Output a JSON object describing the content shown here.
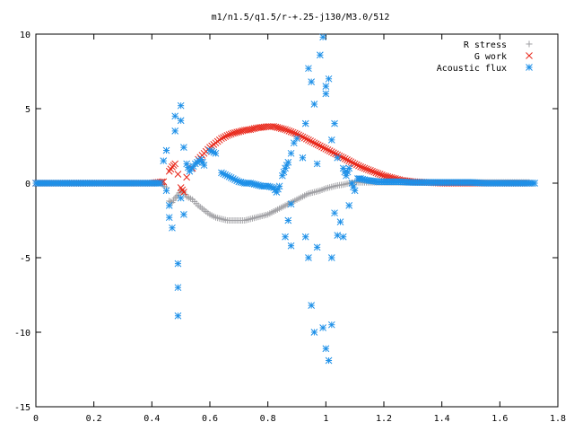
{
  "chart_data": {
    "type": "scatter",
    "title": "m1/n1.5/q1.5/r-+.25-j130/M3.0/512",
    "xlabel": "",
    "ylabel": "",
    "xlim": [
      0,
      1.8
    ],
    "ylim": [
      -15,
      10
    ],
    "xticks": [
      0,
      0.2,
      0.4,
      0.6,
      0.8,
      1,
      1.2,
      1.4,
      1.6,
      1.8
    ],
    "xtick_labels": [
      "0",
      "0.2",
      "0.4",
      "0.6",
      "0.8",
      "1",
      "1.2",
      "1.4",
      "1.6",
      "1.8"
    ],
    "yticks": [
      -15,
      -10,
      -5,
      0,
      5,
      10
    ],
    "ytick_labels": [
      "-15",
      "-10",
      "-5",
      "0",
      "5",
      "10"
    ],
    "grid": false,
    "legend_position": "top-right",
    "series": [
      {
        "name": "R stress",
        "marker": "plus",
        "color": "#a0a0a4",
        "points": [
          [
            0.0,
            0.0
          ],
          [
            0.05,
            0.0
          ],
          [
            0.1,
            0.0
          ],
          [
            0.15,
            0.0
          ],
          [
            0.2,
            0.0
          ],
          [
            0.25,
            0.0
          ],
          [
            0.3,
            0.0
          ],
          [
            0.35,
            0.0
          ],
          [
            0.4,
            0.0
          ],
          [
            0.43,
            0.0
          ],
          [
            0.45,
            -0.3
          ],
          [
            0.46,
            -1.2
          ],
          [
            0.47,
            -1.3
          ],
          [
            0.48,
            -1.0
          ],
          [
            0.49,
            -0.8
          ],
          [
            0.5,
            -0.5
          ],
          [
            0.51,
            -0.6
          ],
          [
            0.52,
            -0.9
          ],
          [
            0.54,
            -1.1
          ],
          [
            0.56,
            -1.5
          ],
          [
            0.58,
            -1.8
          ],
          [
            0.6,
            -2.1
          ],
          [
            0.62,
            -2.3
          ],
          [
            0.64,
            -2.4
          ],
          [
            0.66,
            -2.5
          ],
          [
            0.68,
            -2.5
          ],
          [
            0.7,
            -2.5
          ],
          [
            0.72,
            -2.5
          ],
          [
            0.74,
            -2.4
          ],
          [
            0.76,
            -2.3
          ],
          [
            0.78,
            -2.2
          ],
          [
            0.8,
            -2.1
          ],
          [
            0.82,
            -1.9
          ],
          [
            0.84,
            -1.7
          ],
          [
            0.86,
            -1.5
          ],
          [
            0.88,
            -1.3
          ],
          [
            0.9,
            -1.1
          ],
          [
            0.92,
            -0.9
          ],
          [
            0.94,
            -0.7
          ],
          [
            0.96,
            -0.6
          ],
          [
            0.98,
            -0.5
          ],
          [
            1.0,
            -0.35
          ],
          [
            1.02,
            -0.25
          ],
          [
            1.04,
            -0.15
          ],
          [
            1.06,
            -0.1
          ],
          [
            1.08,
            0.0
          ],
          [
            1.1,
            0.05
          ],
          [
            1.12,
            0.05
          ],
          [
            1.14,
            0.05
          ],
          [
            1.16,
            0.05
          ],
          [
            1.18,
            0.05
          ],
          [
            1.2,
            0.05
          ],
          [
            1.25,
            0.05
          ],
          [
            1.3,
            0.05
          ],
          [
            1.35,
            0.05
          ],
          [
            1.4,
            0.05
          ],
          [
            1.45,
            0.05
          ],
          [
            1.5,
            0.05
          ],
          [
            1.55,
            0.05
          ],
          [
            1.6,
            0.05
          ],
          [
            1.65,
            0.05
          ],
          [
            1.7,
            0.05
          ]
        ]
      },
      {
        "name": "G work",
        "marker": "cross",
        "color": "#e8271a",
        "points": [
          [
            0.0,
            0.0
          ],
          [
            0.05,
            0.0
          ],
          [
            0.1,
            0.0
          ],
          [
            0.15,
            0.0
          ],
          [
            0.2,
            0.0
          ],
          [
            0.25,
            0.0
          ],
          [
            0.3,
            0.0
          ],
          [
            0.35,
            0.0
          ],
          [
            0.4,
            0.0
          ],
          [
            0.44,
            0.1
          ],
          [
            0.46,
            0.8
          ],
          [
            0.47,
            1.1
          ],
          [
            0.48,
            1.3
          ],
          [
            0.49,
            0.6
          ],
          [
            0.5,
            -0.3
          ],
          [
            0.51,
            -0.6
          ],
          [
            0.52,
            0.4
          ],
          [
            0.54,
            1.0
          ],
          [
            0.56,
            1.6
          ],
          [
            0.58,
            2.0
          ],
          [
            0.6,
            2.4
          ],
          [
            0.62,
            2.7
          ],
          [
            0.64,
            3.0
          ],
          [
            0.66,
            3.2
          ],
          [
            0.68,
            3.35
          ],
          [
            0.7,
            3.45
          ],
          [
            0.72,
            3.55
          ],
          [
            0.74,
            3.6
          ],
          [
            0.76,
            3.7
          ],
          [
            0.78,
            3.75
          ],
          [
            0.8,
            3.8
          ],
          [
            0.82,
            3.8
          ],
          [
            0.84,
            3.7
          ],
          [
            0.86,
            3.6
          ],
          [
            0.88,
            3.45
          ],
          [
            0.9,
            3.3
          ],
          [
            0.92,
            3.1
          ],
          [
            0.94,
            2.9
          ],
          [
            0.96,
            2.7
          ],
          [
            0.98,
            2.5
          ],
          [
            1.0,
            2.3
          ],
          [
            1.02,
            2.1
          ],
          [
            1.04,
            1.9
          ],
          [
            1.06,
            1.7
          ],
          [
            1.08,
            1.5
          ],
          [
            1.1,
            1.3
          ],
          [
            1.12,
            1.1
          ],
          [
            1.14,
            0.95
          ],
          [
            1.16,
            0.8
          ],
          [
            1.18,
            0.65
          ],
          [
            1.2,
            0.5
          ],
          [
            1.22,
            0.4
          ],
          [
            1.24,
            0.3
          ],
          [
            1.26,
            0.2
          ],
          [
            1.28,
            0.15
          ],
          [
            1.3,
            0.1
          ],
          [
            1.35,
            0.05
          ],
          [
            1.4,
            0.0
          ],
          [
            1.45,
            0.0
          ],
          [
            1.5,
            0.0
          ],
          [
            1.55,
            0.0
          ],
          [
            1.6,
            0.0
          ],
          [
            1.65,
            0.0
          ],
          [
            1.7,
            0.0
          ]
        ]
      },
      {
        "name": "Acoustic flux",
        "marker": "star",
        "color": "#1e90e8",
        "points": [
          [
            0.0,
            0.0
          ],
          [
            0.05,
            0.0
          ],
          [
            0.1,
            0.0
          ],
          [
            0.15,
            0.0
          ],
          [
            0.2,
            0.0
          ],
          [
            0.25,
            0.0
          ],
          [
            0.3,
            0.0
          ],
          [
            0.35,
            0.0
          ],
          [
            0.4,
            0.0
          ],
          [
            0.43,
            0.0
          ],
          [
            0.44,
            1.5
          ],
          [
            0.45,
            2.2
          ],
          [
            0.45,
            -0.5
          ],
          [
            0.46,
            -1.5
          ],
          [
            0.46,
            -2.3
          ],
          [
            0.47,
            -3.0
          ],
          [
            0.48,
            3.5
          ],
          [
            0.48,
            4.5
          ],
          [
            0.49,
            -5.4
          ],
          [
            0.49,
            -7.0
          ],
          [
            0.49,
            -8.9
          ],
          [
            0.5,
            4.2
          ],
          [
            0.5,
            5.2
          ],
          [
            0.5,
            -1.0
          ],
          [
            0.51,
            2.4
          ],
          [
            0.51,
            -2.1
          ],
          [
            0.52,
            1.3
          ],
          [
            0.53,
            0.8
          ],
          [
            0.55,
            1.3
          ],
          [
            0.57,
            1.6
          ],
          [
            0.58,
            1.2
          ],
          [
            0.6,
            2.2
          ],
          [
            0.62,
            2.0
          ],
          [
            0.64,
            0.7
          ],
          [
            0.66,
            0.5
          ],
          [
            0.68,
            0.3
          ],
          [
            0.7,
            0.1
          ],
          [
            0.72,
            0.0
          ],
          [
            0.74,
            0.0
          ],
          [
            0.76,
            -0.1
          ],
          [
            0.78,
            -0.2
          ],
          [
            0.8,
            -0.2
          ],
          [
            0.82,
            -0.3
          ],
          [
            0.83,
            -0.6
          ],
          [
            0.84,
            -0.2
          ],
          [
            0.85,
            0.5
          ],
          [
            0.86,
            1.0
          ],
          [
            0.87,
            1.4
          ],
          [
            0.88,
            2.0
          ],
          [
            0.89,
            2.7
          ],
          [
            0.88,
            -1.4
          ],
          [
            0.87,
            -2.5
          ],
          [
            0.86,
            -3.6
          ],
          [
            0.88,
            -4.2
          ],
          [
            0.9,
            3.0
          ],
          [
            0.92,
            1.7
          ],
          [
            0.93,
            4.0
          ],
          [
            0.93,
            -3.6
          ],
          [
            0.94,
            7.7
          ],
          [
            0.94,
            -5.0
          ],
          [
            0.95,
            6.8
          ],
          [
            0.95,
            -8.2
          ],
          [
            0.96,
            -10.0
          ],
          [
            0.96,
            5.3
          ],
          [
            0.97,
            -4.3
          ],
          [
            0.97,
            1.3
          ],
          [
            0.98,
            8.6
          ],
          [
            0.99,
            9.8
          ],
          [
            0.99,
            -9.7
          ],
          [
            1.0,
            6.5
          ],
          [
            1.0,
            6.0
          ],
          [
            1.0,
            -11.1
          ],
          [
            1.01,
            7.0
          ],
          [
            1.01,
            -11.9
          ],
          [
            1.02,
            -9.5
          ],
          [
            1.02,
            2.9
          ],
          [
            1.02,
            -5.0
          ],
          [
            1.03,
            -2.0
          ],
          [
            1.03,
            4.0
          ],
          [
            1.04,
            1.7
          ],
          [
            1.04,
            -3.5
          ],
          [
            1.05,
            -2.6
          ],
          [
            1.06,
            -3.6
          ],
          [
            1.06,
            1.0
          ],
          [
            1.07,
            0.5
          ],
          [
            1.08,
            1.0
          ],
          [
            1.08,
            -1.5
          ],
          [
            1.09,
            0.0
          ],
          [
            1.1,
            -0.5
          ],
          [
            1.11,
            0.3
          ],
          [
            1.12,
            0.3
          ],
          [
            1.14,
            0.2
          ],
          [
            1.16,
            0.15
          ],
          [
            1.18,
            0.1
          ],
          [
            1.2,
            0.1
          ],
          [
            1.25,
            0.1
          ],
          [
            1.3,
            0.05
          ],
          [
            1.35,
            0.05
          ],
          [
            1.4,
            0.05
          ],
          [
            1.45,
            0.05
          ],
          [
            1.5,
            0.05
          ],
          [
            1.55,
            0.0
          ],
          [
            1.6,
            0.0
          ],
          [
            1.65,
            0.0
          ],
          [
            1.7,
            0.0
          ],
          [
            1.72,
            0.0
          ]
        ]
      }
    ]
  }
}
